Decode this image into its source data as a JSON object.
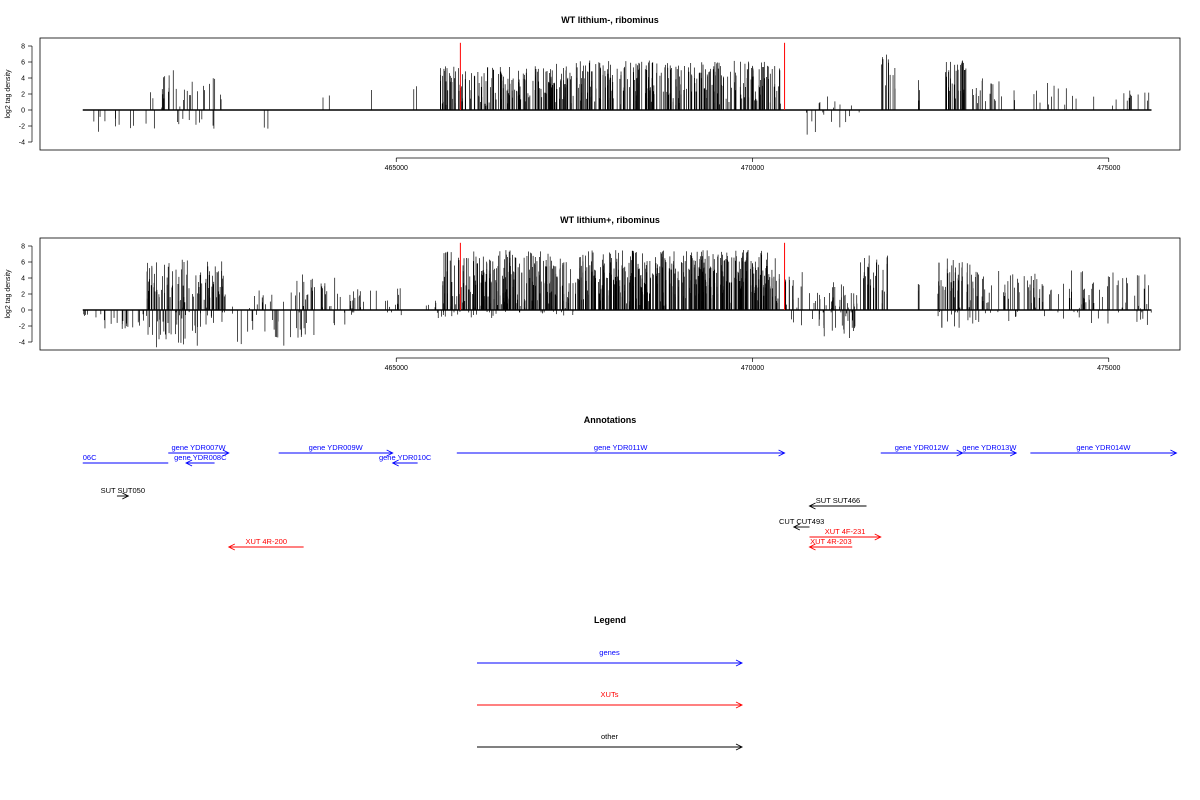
{
  "chart_data": [
    {
      "type": "bar",
      "title": "WT lithium-, ribominus",
      "ylabel": "log2 tag density",
      "xlim": [
        460000,
        476000
      ],
      "ylim": [
        -5,
        9
      ],
      "yticks": [
        -4,
        -2,
        0,
        2,
        4,
        6,
        8
      ],
      "xticks": [
        465000,
        470000,
        475000
      ],
      "xtick_labels": [
        "465000",
        "470000",
        "475000"
      ],
      "data_span": [
        460600,
        475600
      ],
      "marker_color": "#ff0000",
      "markers": [
        {
          "x": 465900,
          "y": 8.4
        },
        {
          "x": 470450,
          "y": 8.4
        }
      ],
      "segments": [
        {
          "from": 460600,
          "to": 461600,
          "n": 10,
          "min": -3.0,
          "max": -0.5
        },
        {
          "from": 461550,
          "to": 461750,
          "n": 4,
          "min": -3.5,
          "max": 3.5
        },
        {
          "from": 461700,
          "to": 461850,
          "n": 8,
          "min": 1.0,
          "max": 5.5
        },
        {
          "from": 461850,
          "to": 462550,
          "n": 26,
          "min": -3.0,
          "max": 5.0
        },
        {
          "from": 463000,
          "to": 463200,
          "n": 2,
          "min": -2.5,
          "max": -1.0
        },
        {
          "from": 463800,
          "to": 464100,
          "n": 2,
          "min": 1.5,
          "max": 2.0
        },
        {
          "from": 464600,
          "to": 464700,
          "n": 1,
          "min": 2.5,
          "max": 2.5
        },
        {
          "from": 465200,
          "to": 465300,
          "n": 2,
          "min": 2.5,
          "max": 3.0
        },
        {
          "from": 465600,
          "to": 467200,
          "n": 140,
          "min": 0.5,
          "max": 5.5
        },
        {
          "from": 467200,
          "to": 470400,
          "n": 300,
          "min": 0.5,
          "max": 6.2
        },
        {
          "from": 470750,
          "to": 471500,
          "n": 18,
          "min": -3.2,
          "max": 2.0
        },
        {
          "from": 471800,
          "to": 472000,
          "n": 12,
          "min": 0.5,
          "max": 7.0
        },
        {
          "from": 472300,
          "to": 472350,
          "n": 3,
          "min": 1.0,
          "max": 5.0
        },
        {
          "from": 472700,
          "to": 473000,
          "n": 30,
          "min": 1.0,
          "max": 6.5
        },
        {
          "from": 473050,
          "to": 473700,
          "n": 20,
          "min": 0.5,
          "max": 4.0
        },
        {
          "from": 473900,
          "to": 475600,
          "n": 25,
          "min": 0.5,
          "max": 3.5
        }
      ]
    },
    {
      "type": "bar",
      "title": "WT lithium+, ribominus",
      "ylabel": "log2 tag density",
      "xlim": [
        460000,
        476000
      ],
      "ylim": [
        -5,
        9
      ],
      "yticks": [
        -4,
        -2,
        0,
        2,
        4,
        6,
        8
      ],
      "xticks": [
        465000,
        470000,
        475000
      ],
      "xtick_labels": [
        "465000",
        "470000",
        "475000"
      ],
      "data_span": [
        460600,
        475600
      ],
      "marker_color": "#ff0000",
      "markers": [
        {
          "x": 465900,
          "y": 8.4
        },
        {
          "x": 470450,
          "y": 8.4
        }
      ],
      "segments": [
        {
          "from": 460600,
          "to": 461500,
          "n": 25,
          "min": -2.5,
          "max": -0.5
        },
        {
          "from": 461500,
          "to": 462600,
          "n": 140,
          "min": -4.8,
          "max": 6.5
        },
        {
          "from": 462700,
          "to": 463600,
          "n": 30,
          "min": -4.5,
          "max": 2.5
        },
        {
          "from": 463600,
          "to": 464300,
          "n": 40,
          "min": -3.5,
          "max": 4.5
        },
        {
          "from": 464300,
          "to": 465100,
          "n": 30,
          "min": -1.5,
          "max": 3.0
        },
        {
          "from": 465400,
          "to": 465650,
          "n": 8,
          "min": -1.5,
          "max": 2.0
        },
        {
          "from": 465650,
          "to": 467500,
          "n": 260,
          "min": -1.0,
          "max": 7.5
        },
        {
          "from": 467500,
          "to": 470400,
          "n": 420,
          "min": 0.5,
          "max": 7.5
        },
        {
          "from": 470400,
          "to": 470700,
          "n": 15,
          "min": -2.0,
          "max": 5.0
        },
        {
          "from": 470800,
          "to": 471500,
          "n": 60,
          "min": -4.0,
          "max": 3.5
        },
        {
          "from": 471500,
          "to": 471900,
          "n": 30,
          "min": 0.5,
          "max": 7.0
        },
        {
          "from": 472300,
          "to": 472350,
          "n": 3,
          "min": 1.0,
          "max": 4.0
        },
        {
          "from": 472600,
          "to": 473100,
          "n": 60,
          "min": -2.5,
          "max": 6.5
        },
        {
          "from": 473100,
          "to": 475600,
          "n": 120,
          "min": -2.0,
          "max": 5.0
        }
      ]
    }
  ],
  "annotations": {
    "title": "Annotations",
    "features": [
      {
        "label": "06C",
        "color": "#0000ff",
        "from": 460600,
        "to": 461800,
        "dir": "none",
        "row": 1,
        "label_x": 460600,
        "label_anchor": "start"
      },
      {
        "label": "gene YDR007W",
        "color": "#0000ff",
        "from": 461800,
        "to": 462650,
        "dir": "right",
        "row": 0
      },
      {
        "label": "gene YDR008C",
        "color": "#0000ff",
        "from": 462050,
        "to": 462450,
        "dir": "left",
        "row": 1
      },
      {
        "label": "gene YDR009W",
        "color": "#0000ff",
        "from": 463350,
        "to": 464950,
        "dir": "right",
        "row": 0
      },
      {
        "label": "gene YDR010C",
        "color": "#0000ff",
        "from": 464950,
        "to": 465300,
        "dir": "left",
        "row": 1
      },
      {
        "label": "gene YDR011W",
        "color": "#0000ff",
        "from": 465850,
        "to": 470450,
        "dir": "right",
        "row": 0
      },
      {
        "label": "gene YDR012W",
        "color": "#0000ff",
        "from": 471800,
        "to": 472950,
        "dir": "right",
        "row": 0
      },
      {
        "label": "gene YDR013W",
        "color": "#0000ff",
        "from": 472950,
        "to": 473700,
        "dir": "right",
        "row": 0
      },
      {
        "label": "gene YDR014W",
        "color": "#0000ff",
        "from": 473900,
        "to": 475950,
        "dir": "right",
        "row": 0
      },
      {
        "label": "SUT SUT050",
        "color": "#000000",
        "from": 461080,
        "to": 461240,
        "dir": "right",
        "row": 2,
        "label_x": 460850,
        "label_anchor": "start"
      },
      {
        "label": "SUT SUT466",
        "color": "#000000",
        "from": 470800,
        "to": 471600,
        "dir": "left",
        "row": 3
      },
      {
        "label": "CUT CUT493",
        "color": "#000000",
        "from": 470580,
        "to": 470800,
        "dir": "left",
        "row": 4
      },
      {
        "label": "XUT 4F-231",
        "color": "#ff0000",
        "from": 470800,
        "to": 471800,
        "dir": "right",
        "row": 5
      },
      {
        "label": "XUT 4R-200",
        "color": "#ff0000",
        "from": 462650,
        "to": 463700,
        "dir": "left",
        "row": 6
      },
      {
        "label": "XUT 4R-203",
        "color": "#ff0000",
        "from": 470800,
        "to": 471400,
        "dir": "left",
        "row": 6
      }
    ]
  },
  "legend": {
    "title": "Legend",
    "items": [
      {
        "label": "genes",
        "color": "#0000ff"
      },
      {
        "label": "XUTs",
        "color": "#ff0000"
      },
      {
        "label": "other",
        "color": "#000000"
      }
    ]
  }
}
